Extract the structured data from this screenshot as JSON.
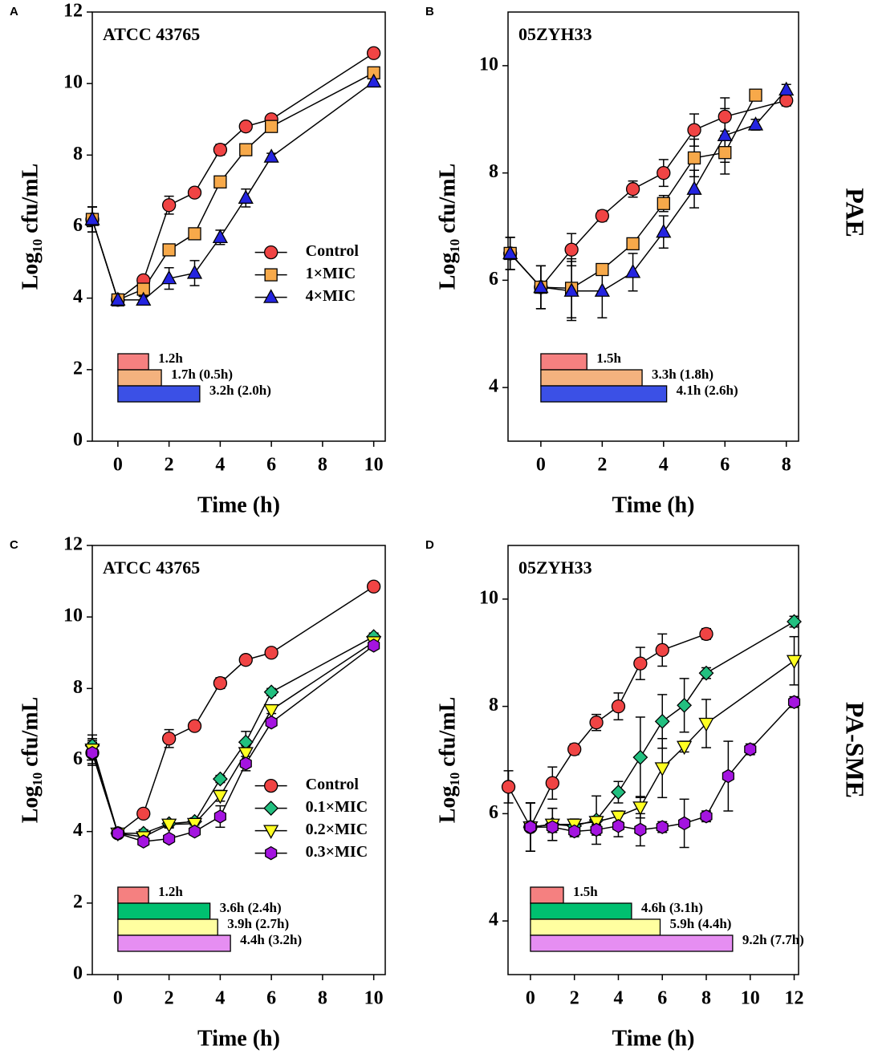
{
  "chart_data": [
    {
      "type": "line",
      "panel": "A",
      "title": "ATCC 43765",
      "xlabel": "Time (h)",
      "ylabel": "Log₁₀ cfu/mL",
      "xlim": [
        -1,
        10.45
      ],
      "ylim": [
        0,
        12
      ],
      "xticks": [
        0,
        2,
        4,
        6,
        8,
        10
      ],
      "yticks": [
        0,
        2,
        4,
        6,
        8,
        10,
        12
      ],
      "legend": "right",
      "series": [
        {
          "name": "Control",
          "color": "#f04444",
          "marker": "circle",
          "x": [
            -1,
            0,
            1,
            2,
            3,
            4,
            5,
            6,
            10
          ],
          "values": [
            6.2,
            3.95,
            4.5,
            6.6,
            6.95,
            8.15,
            8.8,
            9.0,
            10.85
          ],
          "errors": [
            0.35,
            0.1,
            0.1,
            0.25,
            0.1,
            0.15,
            0.1,
            0.1,
            0.1
          ]
        },
        {
          "name": "1×MIC",
          "color": "#f7a94a",
          "marker": "square",
          "x": [
            -1,
            0,
            1,
            2,
            3,
            4,
            5,
            6,
            10
          ],
          "values": [
            6.2,
            3.95,
            4.25,
            5.35,
            5.8,
            7.25,
            8.15,
            8.8,
            10.3
          ],
          "errors": [
            0.35,
            0.1,
            0.2,
            0.15,
            0.15,
            0.1,
            0.1,
            0.1,
            0.1
          ]
        },
        {
          "name": "4×MIC",
          "color": "#2424e0",
          "marker": "triangle",
          "x": [
            -1,
            0,
            1,
            2,
            3,
            4,
            5,
            6,
            10
          ],
          "values": [
            6.2,
            3.95,
            3.95,
            4.55,
            4.7,
            5.7,
            6.8,
            7.95,
            10.05
          ],
          "errors": [
            0.35,
            0.1,
            0.1,
            0.3,
            0.35,
            0.2,
            0.25,
            0.1,
            0.1
          ]
        }
      ],
      "bars": {
        "values": [
          1.2,
          1.7,
          3.2
        ],
        "value_labels": [
          "1.2h",
          "1.7h (0.5h)",
          "3.2h (2.0h)"
        ],
        "colors": [
          "#f58080",
          "#f4b27e",
          "#3b50e6"
        ]
      }
    },
    {
      "type": "line",
      "panel": "B",
      "title": "05ZYH33",
      "xlabel": "Time (h)",
      "ylabel": "Log₁₀ cfu/mL",
      "xlim": [
        -1.07,
        8.4
      ],
      "ylim": [
        3,
        11
      ],
      "xticks": [
        0,
        2,
        4,
        6,
        8
      ],
      "yticks": [
        4,
        6,
        8,
        10
      ],
      "series": [
        {
          "color": "#f04444",
          "marker": "circle",
          "x": [
            -1,
            0,
            1,
            2,
            3,
            4,
            5,
            6,
            8
          ],
          "values": [
            6.5,
            5.87,
            6.57,
            7.2,
            7.7,
            8.0,
            8.8,
            9.05,
            9.35
          ],
          "errors": [
            0.3,
            0.4,
            0.3,
            0.1,
            0.15,
            0.25,
            0.3,
            0.35,
            0.1
          ]
        },
        {
          "color": "#f7a94a",
          "marker": "square",
          "x": [
            -1,
            0,
            1,
            2,
            3,
            4,
            5,
            6,
            7
          ],
          "values": [
            6.5,
            5.87,
            5.85,
            6.2,
            6.68,
            7.43,
            8.28,
            8.38,
            9.45
          ],
          "errors": [
            0.3,
            0.4,
            0.55,
            0.1,
            0.1,
            0.15,
            0.35,
            0.4,
            0.1
          ]
        },
        {
          "color": "#2424e0",
          "marker": "triangle",
          "x": [
            -1,
            0,
            1,
            2,
            3,
            4,
            5,
            6,
            7,
            8
          ],
          "values": [
            6.5,
            5.87,
            5.8,
            5.8,
            6.15,
            6.9,
            7.7,
            8.7,
            8.9,
            9.55
          ],
          "errors": [
            0.3,
            0.4,
            0.55,
            0.5,
            0.35,
            0.3,
            0.35,
            0.5,
            0.1,
            0.1
          ]
        }
      ],
      "bars": {
        "values": [
          1.5,
          3.3,
          4.1
        ],
        "value_labels": [
          "1.5h",
          "3.3h (1.8h)",
          "4.1h (2.6h)"
        ],
        "colors": [
          "#f58080",
          "#f4b27e",
          "#3b50e6"
        ]
      }
    },
    {
      "type": "line",
      "panel": "C",
      "title": "ATCC 43765",
      "xlabel": "Time (h)",
      "ylabel": "Log₁₀ cfu/mL",
      "xlim": [
        -1,
        10.45
      ],
      "ylim": [
        0,
        12
      ],
      "xticks": [
        0,
        2,
        4,
        6,
        8,
        10
      ],
      "yticks": [
        0,
        2,
        4,
        6,
        8,
        10,
        12
      ],
      "legend": "right",
      "series": [
        {
          "name": "Control",
          "color": "#f04444",
          "marker": "circle",
          "x": [
            -1,
            0,
            1,
            2,
            3,
            4,
            5,
            6,
            10
          ],
          "values": [
            6.2,
            3.95,
            4.5,
            6.6,
            6.95,
            8.15,
            8.8,
            9.0,
            10.85
          ],
          "errors": [
            0.35,
            0.1,
            0.1,
            0.25,
            0.1,
            0.15,
            0.1,
            0.1,
            0.1
          ]
        },
        {
          "name": "0.1×MIC",
          "color": "#22c080",
          "marker": "diamond",
          "x": [
            -1,
            0,
            1,
            2,
            3,
            4,
            5,
            6,
            10
          ],
          "values": [
            6.4,
            3.95,
            3.95,
            4.22,
            4.28,
            5.47,
            6.5,
            7.9,
            9.45
          ],
          "errors": [
            0.3,
            0.1,
            0.1,
            0.1,
            0.1,
            0.1,
            0.3,
            0.1,
            0.1
          ]
        },
        {
          "name": "0.2×MIC",
          "color": "#ffff22",
          "marker": "tridown",
          "x": [
            -1,
            0,
            1,
            2,
            3,
            4,
            5,
            6,
            10
          ],
          "values": [
            6.3,
            3.95,
            3.85,
            4.2,
            4.22,
            5.0,
            6.2,
            7.4,
            9.3
          ],
          "errors": [
            0.3,
            0.1,
            0.1,
            0.1,
            0.1,
            0.15,
            0.2,
            0.1,
            0.1
          ]
        },
        {
          "name": "0.3×MIC",
          "color": "#a414e0",
          "marker": "hexagon",
          "x": [
            -1,
            0,
            1,
            2,
            3,
            4,
            5,
            6,
            10
          ],
          "values": [
            6.2,
            3.95,
            3.72,
            3.8,
            4.0,
            4.42,
            5.9,
            7.05,
            9.2
          ],
          "errors": [
            0.3,
            0.1,
            0.1,
            0.1,
            0.1,
            0.3,
            0.2,
            0.1,
            0.1
          ]
        }
      ],
      "bars": {
        "values": [
          1.2,
          3.6,
          3.9,
          4.4
        ],
        "value_labels": [
          "1.2h",
          "3.6h (2.4h)",
          "3.9h  (2.7h)",
          "4.4h  (3.2h)"
        ],
        "colors": [
          "#f58080",
          "#00c070",
          "#ffffa0",
          "#e68ef2"
        ]
      }
    },
    {
      "type": "line",
      "panel": "D",
      "title": "05ZYH33",
      "xlabel": "Time (h)",
      "ylabel": "Log₁₀ cfu/mL",
      "xlim": [
        -1.02,
        12.2
      ],
      "ylim": [
        3,
        11
      ],
      "xticks": [
        0,
        2,
        4,
        6,
        8,
        10,
        12
      ],
      "yticks": [
        4,
        6,
        8,
        10
      ],
      "series": [
        {
          "color": "#f04444",
          "marker": "circle",
          "x": [
            -1,
            0,
            1,
            2,
            3,
            4,
            5,
            6,
            8
          ],
          "values": [
            6.5,
            5.75,
            6.57,
            7.2,
            7.7,
            8.0,
            8.8,
            9.05,
            9.35
          ],
          "errors": [
            0.3,
            0.45,
            0.3,
            0.1,
            0.15,
            0.25,
            0.3,
            0.3,
            0.1
          ]
        },
        {
          "color": "#22c080",
          "marker": "diamond",
          "x": [
            0,
            1,
            2,
            3,
            4,
            5,
            6,
            7,
            8,
            12
          ],
          "values": [
            5.75,
            5.8,
            5.77,
            5.88,
            6.4,
            7.05,
            7.72,
            8.02,
            8.62,
            9.58
          ],
          "errors": [
            0.45,
            0.3,
            0.1,
            0.45,
            0.2,
            0.75,
            0.5,
            0.5,
            0.1,
            0.1
          ]
        },
        {
          "color": "#ffff22",
          "marker": "tridown",
          "x": [
            0,
            1,
            2,
            3,
            4,
            5,
            6,
            7,
            8,
            12
          ],
          "values": [
            5.75,
            5.8,
            5.8,
            5.85,
            5.95,
            6.12,
            6.85,
            7.25,
            7.68,
            8.85
          ],
          "errors": [
            0.45,
            0.3,
            0.1,
            0.1,
            0.1,
            0.2,
            0.55,
            0.1,
            0.45,
            0.45
          ]
        },
        {
          "color": "#a414e0",
          "marker": "hexagon",
          "x": [
            0,
            1,
            2,
            3,
            4,
            5,
            6,
            7,
            8,
            9,
            10,
            12
          ],
          "values": [
            5.75,
            5.75,
            5.67,
            5.7,
            5.77,
            5.7,
            5.75,
            5.82,
            5.95,
            6.7,
            7.2,
            8.08
          ],
          "errors": [
            0.45,
            0.1,
            0.1,
            0.1,
            0.2,
            0.3,
            0.1,
            0.45,
            0.1,
            0.65,
            0.1,
            0.1
          ]
        }
      ],
      "bars": {
        "values": [
          1.5,
          4.6,
          5.9,
          9.2
        ],
        "value_labels": [
          "1.5h",
          "4.6h (3.1h)",
          "5.9h (4.4h)",
          "9.2h (7.7h)"
        ],
        "colors": [
          "#f58080",
          "#00c070",
          "#ffffa0",
          "#e68ef2"
        ]
      }
    }
  ],
  "row_labels": [
    "PAE",
    "PA-SME"
  ]
}
